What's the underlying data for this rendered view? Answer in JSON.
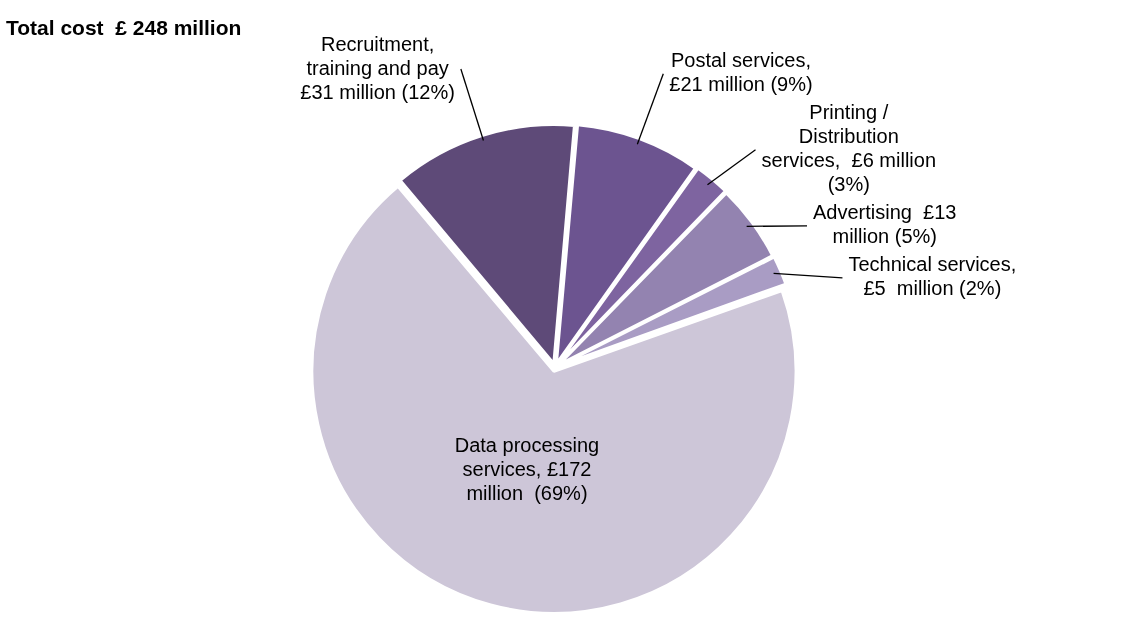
{
  "chart_data": {
    "type": "pie",
    "title": "Total cost  £ 248 million",
    "categories": [
      "Recruitment,\ntraining and pay\n£31 million (12%)",
      "Postal services,\n£21 million (9%)",
      "Printing /\nDistribution\nservices,  £6 million\n(3%)",
      "Advertising  £13\nmillion (5%)",
      "Technical services,\n£5  million (2%)",
      "Data processing\nservices, £172\nmillion  (69%)"
    ],
    "values": [
      31,
      21,
      6,
      13,
      5,
      172
    ],
    "colors": [
      "#5e4a78",
      "#6c5490",
      "#7e64a0",
      "#9383b0",
      "#a99cc4",
      "#cdc6d8"
    ],
    "legend": false
  }
}
